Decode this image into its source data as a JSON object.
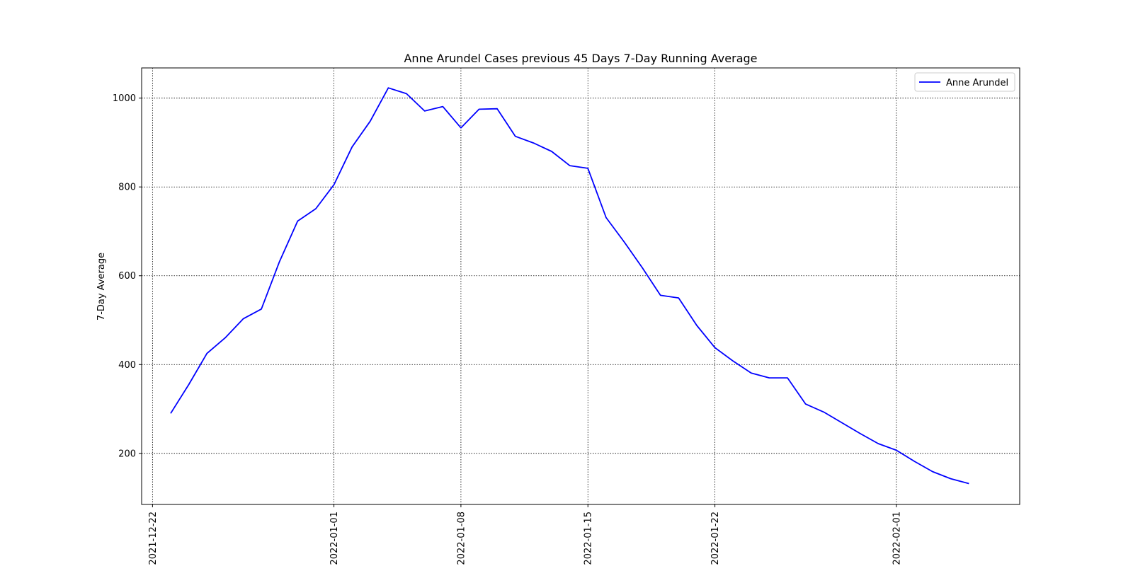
{
  "chart_data": {
    "type": "line",
    "title": "Anne Arundel Cases previous 45 Days 7-Day Running Average",
    "xlabel": "",
    "ylabel": "7-Day Average",
    "x_tick_labels": [
      "2021-12-22",
      "2022-01-01",
      "2022-01-08",
      "2022-01-15",
      "2022-01-22",
      "2022-02-01"
    ],
    "y_ticks": [
      200,
      400,
      600,
      800,
      1000
    ],
    "xlim": [
      "2021-12-21.4",
      "2022-02-07.8"
    ],
    "ylim": [
      85,
      1068
    ],
    "grid": true,
    "legend_position": "top-right",
    "series": [
      {
        "name": "Anne Arundel",
        "color": "#0000ff",
        "points": [
          [
            "2021-12-23",
            290
          ],
          [
            "2021-12-24",
            355
          ],
          [
            "2021-12-25",
            425
          ],
          [
            "2021-12-26",
            460
          ],
          [
            "2021-12-27",
            503
          ],
          [
            "2021-12-28",
            525
          ],
          [
            "2021-12-29",
            632
          ],
          [
            "2021-12-30",
            723
          ],
          [
            "2021-12-31",
            751
          ],
          [
            "2022-01-01",
            805
          ],
          [
            "2022-01-02",
            890
          ],
          [
            "2022-01-03",
            948
          ],
          [
            "2022-01-04",
            1023
          ],
          [
            "2022-01-05",
            1010
          ],
          [
            "2022-01-06",
            971
          ],
          [
            "2022-01-07",
            981
          ],
          [
            "2022-01-08",
            933
          ],
          [
            "2022-01-09",
            975
          ],
          [
            "2022-01-10",
            976
          ],
          [
            "2022-01-11",
            914
          ],
          [
            "2022-01-12",
            899
          ],
          [
            "2022-01-13",
            880
          ],
          [
            "2022-01-14",
            848
          ],
          [
            "2022-01-15",
            842
          ],
          [
            "2022-01-16",
            731
          ],
          [
            "2022-01-17",
            676
          ],
          [
            "2022-01-18",
            618
          ],
          [
            "2022-01-19",
            556
          ],
          [
            "2022-01-20",
            550
          ],
          [
            "2022-01-21",
            488
          ],
          [
            "2022-01-22",
            438
          ],
          [
            "2022-01-23",
            408
          ],
          [
            "2022-01-24",
            381
          ],
          [
            "2022-01-25",
            370
          ],
          [
            "2022-01-26",
            370
          ],
          [
            "2022-01-27",
            311
          ],
          [
            "2022-01-28",
            293
          ],
          [
            "2022-01-29",
            269
          ],
          [
            "2022-01-30",
            245
          ],
          [
            "2022-01-31",
            222
          ],
          [
            "2022-02-01",
            207
          ],
          [
            "2022-02-02",
            182
          ],
          [
            "2022-02-03",
            159
          ],
          [
            "2022-02-04",
            143
          ],
          [
            "2022-02-05",
            132
          ]
        ]
      }
    ]
  }
}
